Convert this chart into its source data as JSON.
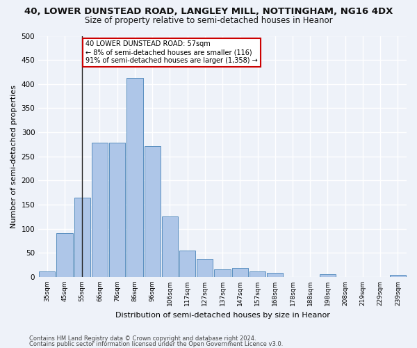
{
  "title1": "40, LOWER DUNSTEAD ROAD, LANGLEY MILL, NOTTINGHAM, NG16 4DX",
  "title2": "Size of property relative to semi-detached houses in Heanor",
  "xlabel": "Distribution of semi-detached houses by size in Heanor",
  "ylabel": "Number of semi-detached properties",
  "bar_labels": [
    "35sqm",
    "45sqm",
    "55sqm",
    "66sqm",
    "76sqm",
    "86sqm",
    "96sqm",
    "106sqm",
    "117sqm",
    "127sqm",
    "137sqm",
    "147sqm",
    "157sqm",
    "168sqm",
    "178sqm",
    "188sqm",
    "198sqm",
    "208sqm",
    "219sqm",
    "229sqm",
    "239sqm"
  ],
  "bar_values": [
    11,
    91,
    165,
    279,
    279,
    413,
    271,
    125,
    55,
    37,
    16,
    18,
    11,
    8,
    0,
    0,
    5,
    0,
    0,
    0,
    4
  ],
  "bar_color": "#aec6e8",
  "bar_edge_color": "#5a8fc0",
  "annotation_text": "40 LOWER DUNSTEAD ROAD: 57sqm\n← 8% of semi-detached houses are smaller (116)\n91% of semi-detached houses are larger (1,358) →",
  "annotation_box_color": "#ffffff",
  "annotation_box_edge_color": "#cc0000",
  "vline_x": 2,
  "footnote1": "Contains HM Land Registry data © Crown copyright and database right 2024.",
  "footnote2": "Contains public sector information licensed under the Open Government Licence v3.0.",
  "ylim": [
    0,
    500
  ],
  "yticks": [
    0,
    50,
    100,
    150,
    200,
    250,
    300,
    350,
    400,
    450,
    500
  ],
  "background_color": "#eef2f9",
  "grid_color": "#ffffff",
  "title1_fontsize": 9.5,
  "title2_fontsize": 8.5,
  "xlabel_fontsize": 8,
  "ylabel_fontsize": 8
}
